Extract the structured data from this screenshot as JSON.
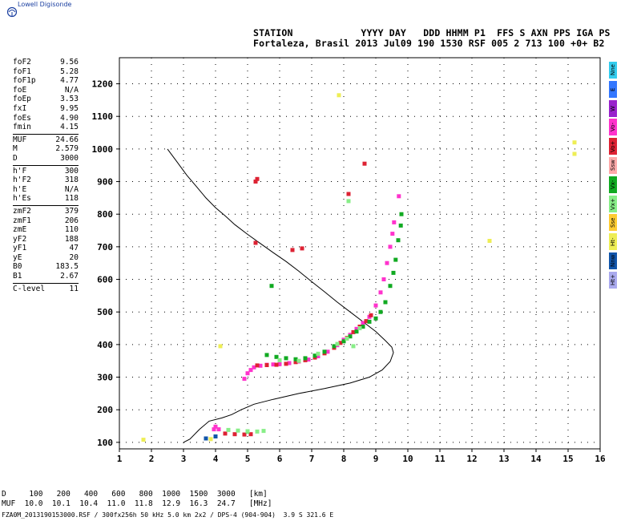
{
  "app": {
    "logo_text": "Lowell Digisonde"
  },
  "header": {
    "line1": "STATION            YYYY DAY   DDD HHMM P1  FFS S AXN PPS IGA PS",
    "line2": "Fortaleza, Brasil 2013 Jul09 190 1530 RSF 005 2 713 100 +0+ B2"
  },
  "params": {
    "group1": [
      {
        "label": "foF2",
        "value": "9.56"
      },
      {
        "label": "foF1",
        "value": "5.28"
      },
      {
        "label": "foF1p",
        "value": "4.77"
      },
      {
        "label": "foE",
        "value": "N/A"
      },
      {
        "label": "foEp",
        "value": "3.53"
      },
      {
        "label": "fxI",
        "value": "9.95"
      },
      {
        "label": "foEs",
        "value": "4.90"
      },
      {
        "label": "fmin",
        "value": "4.15"
      }
    ],
    "group2": [
      {
        "label": "MUF",
        "value": "24.66"
      },
      {
        "label": "M",
        "value": "2.579"
      },
      {
        "label": "D",
        "value": "3000"
      }
    ],
    "group3": [
      {
        "label": "h'F",
        "value": "300"
      },
      {
        "label": "h'F2",
        "value": "318"
      },
      {
        "label": "h'E",
        "value": "N/A"
      },
      {
        "label": "h'Es",
        "value": "118"
      }
    ],
    "group4": [
      {
        "label": "zmF2",
        "value": "379"
      },
      {
        "label": "zmF1",
        "value": "206"
      },
      {
        "label": "zmE",
        "value": "110"
      },
      {
        "label": "yF2",
        "value": "188"
      },
      {
        "label": "yF1",
        "value": "47"
      },
      {
        "label": "yE",
        "value": "20"
      },
      {
        "label": "B0",
        "value": "183.5"
      },
      {
        "label": "B1",
        "value": "2.67"
      }
    ],
    "group5": [
      {
        "label": "C-level",
        "value": "11"
      }
    ]
  },
  "legend": [
    {
      "label": "Nne",
      "color": "#33ccee"
    },
    {
      "label": "E",
      "color": "#3377ff"
    },
    {
      "label": "W",
      "color": "#9922cc"
    },
    {
      "label": "Vo-",
      "color": "#ff33cc"
    },
    {
      "label": "Vo+",
      "color": "#dd2233"
    },
    {
      "label": "Ssw",
      "color": "#ffaaaa"
    },
    {
      "label": "Vx-",
      "color": "#11aa22"
    },
    {
      "label": "Vx+",
      "color": "#88ee88"
    },
    {
      "label": "Sse",
      "color": "#ffcc33"
    },
    {
      "label": "Ht-",
      "color": "#eeee55"
    },
    {
      "label": "Nnw",
      "color": "#1155aa"
    },
    {
      "label": "Ht+",
      "color": "#aaaaee"
    }
  ],
  "distance_table": {
    "row1": "D     100   200   400   600   800  1000  1500  3000   [km]",
    "row2": "MUF  10.0  10.1  10.4  11.0  11.8  12.9  16.3  24.7   [MHz]"
  },
  "footer": {
    "text": "FZA0M_2013190153000.RSF / 300fx256h 50 kHz 5.0 km 2x2 / DPS-4 (904-904)  3.9 S 321.6 E"
  },
  "chart_data": {
    "type": "scatter",
    "title": "",
    "xlabel": "",
    "ylabel": "",
    "xlim": [
      1,
      16
    ],
    "ylim": [
      80,
      1280
    ],
    "x_ticks": [
      1,
      2,
      3,
      4,
      5,
      6,
      7,
      8,
      9,
      10,
      11,
      12,
      13,
      14,
      15,
      16
    ],
    "y_ticks": [
      100,
      200,
      300,
      400,
      500,
      600,
      700,
      800,
      900,
      1000,
      1100,
      1200
    ],
    "grid": true,
    "series": [
      {
        "name": "Vo-",
        "color": "#ff33cc",
        "points": [
          [
            4.9,
            295
          ],
          [
            5.0,
            312
          ],
          [
            5.1,
            322
          ],
          [
            5.2,
            330
          ],
          [
            5.4,
            335
          ],
          [
            5.6,
            338
          ],
          [
            5.8,
            339
          ],
          [
            6.0,
            340
          ],
          [
            6.3,
            343
          ],
          [
            6.6,
            348
          ],
          [
            6.9,
            354
          ],
          [
            7.2,
            364
          ],
          [
            7.5,
            378
          ],
          [
            7.8,
            398
          ],
          [
            8.0,
            415
          ],
          [
            8.2,
            430
          ],
          [
            8.4,
            448
          ],
          [
            8.6,
            466
          ],
          [
            8.8,
            485
          ],
          [
            9.0,
            520
          ],
          [
            9.15,
            560
          ],
          [
            9.25,
            600
          ],
          [
            9.35,
            650
          ],
          [
            9.45,
            700
          ],
          [
            9.52,
            740
          ],
          [
            9.57,
            775
          ],
          [
            9.72,
            855
          ],
          [
            3.95,
            140
          ],
          [
            4.0,
            148
          ],
          [
            4.1,
            140
          ]
        ]
      },
      {
        "name": "Vo+",
        "color": "#dd2233",
        "points": [
          [
            5.3,
            336
          ],
          [
            5.6,
            337
          ],
          [
            5.9,
            338
          ],
          [
            6.2,
            341
          ],
          [
            6.5,
            346
          ],
          [
            6.8,
            352
          ],
          [
            7.1,
            360
          ],
          [
            7.4,
            373
          ],
          [
            7.7,
            390
          ],
          [
            7.9,
            405
          ],
          [
            8.1,
            420
          ],
          [
            8.3,
            438
          ],
          [
            8.5,
            455
          ],
          [
            8.7,
            472
          ],
          [
            8.85,
            490
          ],
          [
            4.3,
            127
          ],
          [
            4.6,
            125
          ],
          [
            4.9,
            124
          ],
          [
            5.1,
            125
          ],
          [
            8.65,
            955
          ],
          [
            8.15,
            862
          ],
          [
            6.4,
            690
          ],
          [
            6.7,
            695
          ],
          [
            5.25,
            900
          ],
          [
            5.3,
            908
          ],
          [
            5.25,
            712
          ]
        ]
      },
      {
        "name": "Vx-",
        "color": "#11aa22",
        "points": [
          [
            5.6,
            368
          ],
          [
            5.9,
            362
          ],
          [
            6.2,
            358
          ],
          [
            6.5,
            355
          ],
          [
            6.8,
            358
          ],
          [
            7.1,
            366
          ],
          [
            7.4,
            378
          ],
          [
            7.7,
            395
          ],
          [
            8.0,
            410
          ],
          [
            8.2,
            425
          ],
          [
            8.4,
            440
          ],
          [
            8.6,
            455
          ],
          [
            8.8,
            470
          ],
          [
            9.0,
            480
          ],
          [
            9.15,
            500
          ],
          [
            9.3,
            530
          ],
          [
            9.45,
            580
          ],
          [
            9.55,
            620
          ],
          [
            9.62,
            660
          ],
          [
            9.7,
            720
          ],
          [
            9.78,
            765
          ],
          [
            9.8,
            800
          ],
          [
            5.75,
            580
          ],
          [
            5.0,
            133
          ]
        ]
      },
      {
        "name": "Vx+",
        "color": "#88ee88",
        "points": [
          [
            4.4,
            138
          ],
          [
            4.7,
            136
          ],
          [
            5.0,
            134
          ],
          [
            5.3,
            133
          ],
          [
            5.5,
            135
          ],
          [
            6.0,
            352
          ],
          [
            6.6,
            350
          ],
          [
            7.2,
            372
          ],
          [
            7.8,
            402
          ],
          [
            8.1,
            418
          ],
          [
            8.5,
            450
          ],
          [
            8.3,
            395
          ],
          [
            8.15,
            840
          ]
        ]
      },
      {
        "name": "Ht-",
        "color": "#eeee55",
        "points": [
          [
            1.75,
            108
          ],
          [
            7.85,
            1165
          ],
          [
            12.55,
            718
          ],
          [
            15.2,
            1020
          ],
          [
            15.2,
            985
          ],
          [
            4.15,
            395
          ],
          [
            3.85,
            110
          ]
        ]
      },
      {
        "name": "Nnw",
        "color": "#1155aa",
        "points": [
          [
            3.7,
            112
          ],
          [
            4.0,
            118
          ]
        ]
      }
    ],
    "profile_trace": {
      "color": "#000000",
      "points": [
        [
          2.5,
          1000
        ],
        [
          2.8,
          960
        ],
        [
          3.1,
          920
        ],
        [
          3.4,
          885
        ],
        [
          3.7,
          850
        ],
        [
          4.0,
          820
        ],
        [
          4.3,
          795
        ],
        [
          4.6,
          768
        ],
        [
          5.0,
          738
        ],
        [
          5.4,
          710
        ],
        [
          5.8,
          682
        ],
        [
          6.2,
          655
        ],
        [
          6.6,
          625
        ],
        [
          7.0,
          593
        ],
        [
          7.4,
          562
        ],
        [
          7.8,
          530
        ],
        [
          8.2,
          500
        ],
        [
          8.6,
          470
        ],
        [
          9.0,
          440
        ],
        [
          9.3,
          412
        ],
        [
          9.5,
          392
        ],
        [
          9.55,
          375
        ],
        [
          9.45,
          348
        ],
        [
          9.2,
          322
        ],
        [
          8.8,
          300
        ],
        [
          8.2,
          282
        ],
        [
          7.4,
          265
        ],
        [
          6.6,
          250
        ],
        [
          5.8,
          232
        ],
        [
          5.2,
          217
        ],
        [
          4.8,
          200
        ],
        [
          4.5,
          185
        ],
        [
          4.2,
          175
        ],
        [
          3.8,
          165
        ],
        [
          3.5,
          140
        ],
        [
          3.2,
          110
        ],
        [
          3.0,
          100
        ]
      ]
    }
  }
}
